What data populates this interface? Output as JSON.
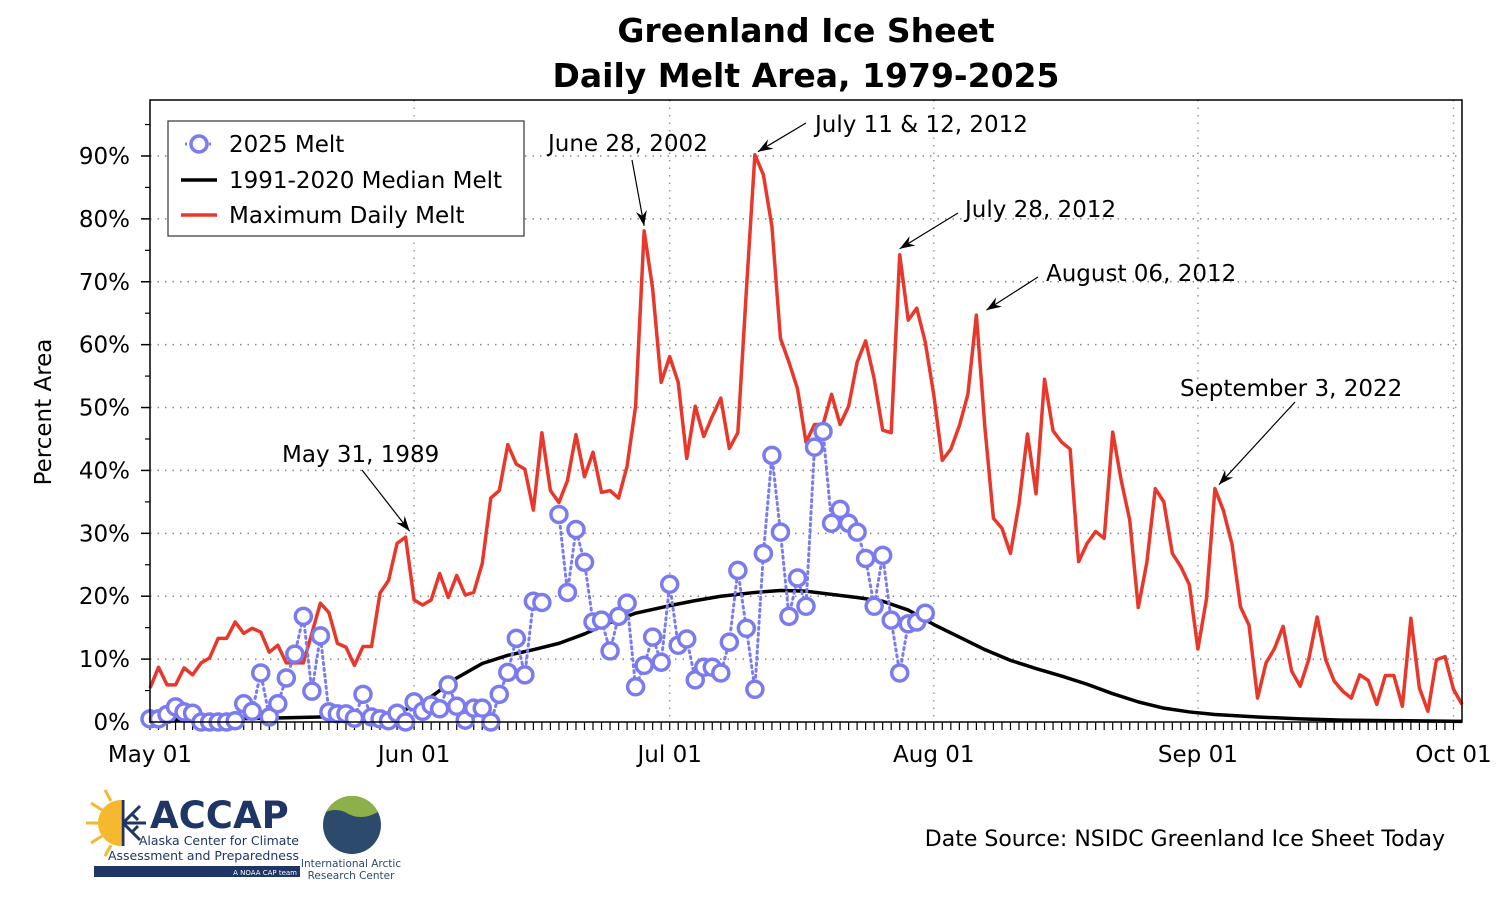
{
  "chart_data": {
    "type": "line",
    "title": "Greenland Ice Sheet",
    "subtitle": "Daily Melt Area, 1979-2025",
    "xlabel": "",
    "ylabel": "Percent Area",
    "x_unit": "days since May 01",
    "xlim": [
      0,
      154
    ],
    "ylim": [
      0,
      98.9
    ],
    "grid": true,
    "x_ticks": [
      {
        "day": 0,
        "label": "May 01"
      },
      {
        "day": 31,
        "label": "Jun 01"
      },
      {
        "day": 61,
        "label": "Jul 01"
      },
      {
        "day": 92,
        "label": "Aug 01"
      },
      {
        "day": 123,
        "label": "Sep 01"
      },
      {
        "day": 153,
        "label": "Oct 01"
      }
    ],
    "y_ticks": [
      {
        "value": 0,
        "label": "0%"
      },
      {
        "value": 10,
        "label": "10%"
      },
      {
        "value": 20,
        "label": "20%"
      },
      {
        "value": 30,
        "label": "30%"
      },
      {
        "value": 40,
        "label": "40%"
      },
      {
        "value": 50,
        "label": "50%"
      },
      {
        "value": 60,
        "label": "60%"
      },
      {
        "value": 70,
        "label": "70%"
      },
      {
        "value": 80,
        "label": "80%"
      },
      {
        "value": 90,
        "label": "90%"
      }
    ],
    "legend_position": "top-left",
    "series": [
      {
        "name": "2025 Melt",
        "color": "#7b7bf0",
        "style": "dotted-circles",
        "start_day": 0,
        "values": [
          0.5,
          0.5,
          1.2,
          2.4,
          1.6,
          1.4,
          0,
          0,
          0,
          0,
          0.2,
          2.9,
          1.7,
          7.8,
          0.8,
          2.9,
          7,
          10.8,
          16.8,
          4.9,
          13.7,
          1.6,
          1.3,
          1.3,
          0.6,
          4.4,
          0.8,
          0.5,
          0.2,
          1.4,
          0,
          3.2,
          1.7,
          2.7,
          2.1,
          5.9,
          2.5,
          0.3,
          2.2,
          2.2,
          0,
          4.4,
          7.9,
          13.3,
          7.5,
          19.2,
          19,
          null,
          33,
          20.6,
          30.6,
          25.4,
          15.9,
          16.2,
          11.3,
          16.8,
          18.9,
          5.6,
          9,
          13.5,
          9.5,
          21.9,
          12.2,
          13.2,
          6.7,
          8.7,
          8.7,
          7.8,
          12.7,
          24.1,
          14.9,
          5.2,
          26.8,
          42.4,
          30.2,
          16.8,
          22.9,
          18.4,
          43.7,
          46.2,
          31.6,
          33.8,
          31.6,
          30.2,
          26,
          18.4,
          26.5,
          16.2,
          7.8,
          15.6,
          15.9,
          17.3
        ]
      },
      {
        "name": "1991-2020 Median Melt",
        "color": "#000000",
        "style": "solid",
        "points": [
          [
            0,
            0.3
          ],
          [
            10,
            0.5
          ],
          [
            20,
            0.8
          ],
          [
            27,
            1.0
          ],
          [
            29,
            1.5
          ],
          [
            31,
            2.5
          ],
          [
            33,
            4
          ],
          [
            36,
            7
          ],
          [
            39,
            9.3
          ],
          [
            42,
            10.6
          ],
          [
            45,
            11.5
          ],
          [
            48,
            12.5
          ],
          [
            51,
            14
          ],
          [
            54,
            15.8
          ],
          [
            57,
            17.3
          ],
          [
            61,
            18.5
          ],
          [
            64,
            19.3
          ],
          [
            67,
            20
          ],
          [
            71,
            20.6
          ],
          [
            74,
            20.9
          ],
          [
            77,
            20.8
          ],
          [
            80,
            20.3
          ],
          [
            83,
            19.8
          ],
          [
            86,
            19.2
          ],
          [
            89,
            17.8
          ],
          [
            92,
            15.5
          ],
          [
            95,
            13.5
          ],
          [
            98,
            11.5
          ],
          [
            101,
            9.8
          ],
          [
            104,
            8.5
          ],
          [
            107,
            7.3
          ],
          [
            110,
            6
          ],
          [
            113,
            4.5
          ],
          [
            116,
            3.2
          ],
          [
            119,
            2.2
          ],
          [
            122,
            1.6
          ],
          [
            125,
            1.2
          ],
          [
            130,
            0.8
          ],
          [
            135,
            0.5
          ],
          [
            140,
            0.3
          ],
          [
            154,
            0.1
          ]
        ]
      },
      {
        "name": "Maximum Daily Melt",
        "color": "#e8382b",
        "style": "solid",
        "start_day": 0,
        "values": [
          5.4,
          8.7,
          5.9,
          5.9,
          8.6,
          7.5,
          9.4,
          10.2,
          13.3,
          13.3,
          15.9,
          14.1,
          14.9,
          14.3,
          11.1,
          12.2,
          9.4,
          9.4,
          9.4,
          14.1,
          18.9,
          17.4,
          12.5,
          11.9,
          9,
          12,
          12,
          20.5,
          22.5,
          28.4,
          29.4,
          19.4,
          18.6,
          19.4,
          23.6,
          19.8,
          23.3,
          20.2,
          20.6,
          25.2,
          35.6,
          36.8,
          44.1,
          41,
          40.2,
          33.7,
          46,
          36.8,
          34.9,
          38.4,
          45.7,
          39,
          42.9,
          36.5,
          36.8,
          35.6,
          40.7,
          50.2,
          78.1,
          68.9,
          54,
          58.1,
          54,
          41.9,
          50.2,
          45.4,
          48.6,
          51.5,
          43.5,
          46,
          68.6,
          90.2,
          87,
          78.8,
          61,
          57.2,
          53,
          44.5,
          47.3,
          47.3,
          52.1,
          47.3,
          50.2,
          57.2,
          60.6,
          54.6,
          46.4,
          46,
          74.3,
          63.9,
          65.8,
          60.4,
          52,
          41.6,
          43.4,
          47.1,
          52.1,
          64.7,
          46.8,
          32.4,
          30.8,
          26.8,
          34.7,
          45.8,
          36.3,
          54.5,
          46.3,
          44.5,
          43.4,
          25.5,
          28.4,
          30.3,
          29.2,
          46.1,
          38.4,
          32.1,
          18.2,
          25.3,
          37.1,
          35,
          26.8,
          24.7,
          21.8,
          11.6,
          19.5,
          37.1,
          33.6,
          28.3,
          18.3,
          15.4,
          3.8,
          9.4,
          11.7,
          15.2,
          8.1,
          5.7,
          9.9,
          16.7,
          9.9,
          6.5,
          4.9,
          3.8,
          7.5,
          6.6,
          2.8,
          7.4,
          7.4,
          2.5,
          16.5,
          5.4,
          1.7,
          9.9,
          10.4,
          5.2,
          2.8
        ]
      }
    ],
    "annotations": [
      {
        "text": "May 31, 1989",
        "day": 30,
        "value": 29.4
      },
      {
        "text": "June 28, 2002",
        "day": 58,
        "value": 78.1
      },
      {
        "text": "July 11 & 12, 2012",
        "day": 71,
        "value": 90.2
      },
      {
        "text": "July 28, 2012",
        "day": 88,
        "value": 74.3
      },
      {
        "text": "August 06, 2012",
        "day": 97,
        "value": 64.7
      },
      {
        "text": "September 3, 2022",
        "day": 125,
        "value": 37.1
      }
    ]
  },
  "footer": {
    "source": "Date Source: NSIDC Greenland Ice Sheet Today",
    "accap_logo": {
      "name": "ACCAP",
      "line1": "Alaska Center for Climate",
      "line2": "Assessment and Preparedness",
      "tagline": "A NOAA CAP team"
    },
    "iarc_logo": {
      "line1": "International Arctic",
      "line2": "Research Center"
    }
  }
}
